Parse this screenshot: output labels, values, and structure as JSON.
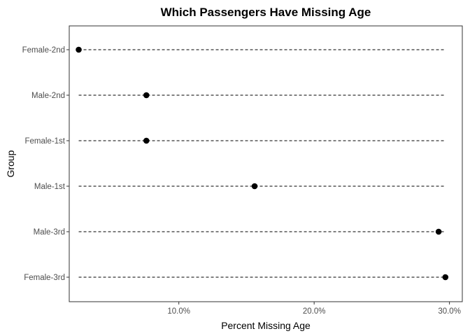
{
  "chart_data": {
    "type": "dot",
    "title": "Which Passengers Have Missing Age",
    "xlabel": "Percent Missing Age",
    "ylabel": "Group",
    "x_tick_values": [
      10,
      20,
      30
    ],
    "x_tick_labels": [
      "10.0%",
      "20.0%",
      "30.0%"
    ],
    "xlim": [
      1.9,
      30.95
    ],
    "grid": false,
    "categories": [
      "Female-3rd",
      "Male-3rd",
      "Male-1st",
      "Female-1st",
      "Male-2nd",
      "Female-2nd"
    ],
    "values": [
      29.7,
      29.2,
      15.6,
      7.6,
      7.6,
      2.6
    ],
    "segment_start": 2.6,
    "segment_end": 29.7
  }
}
